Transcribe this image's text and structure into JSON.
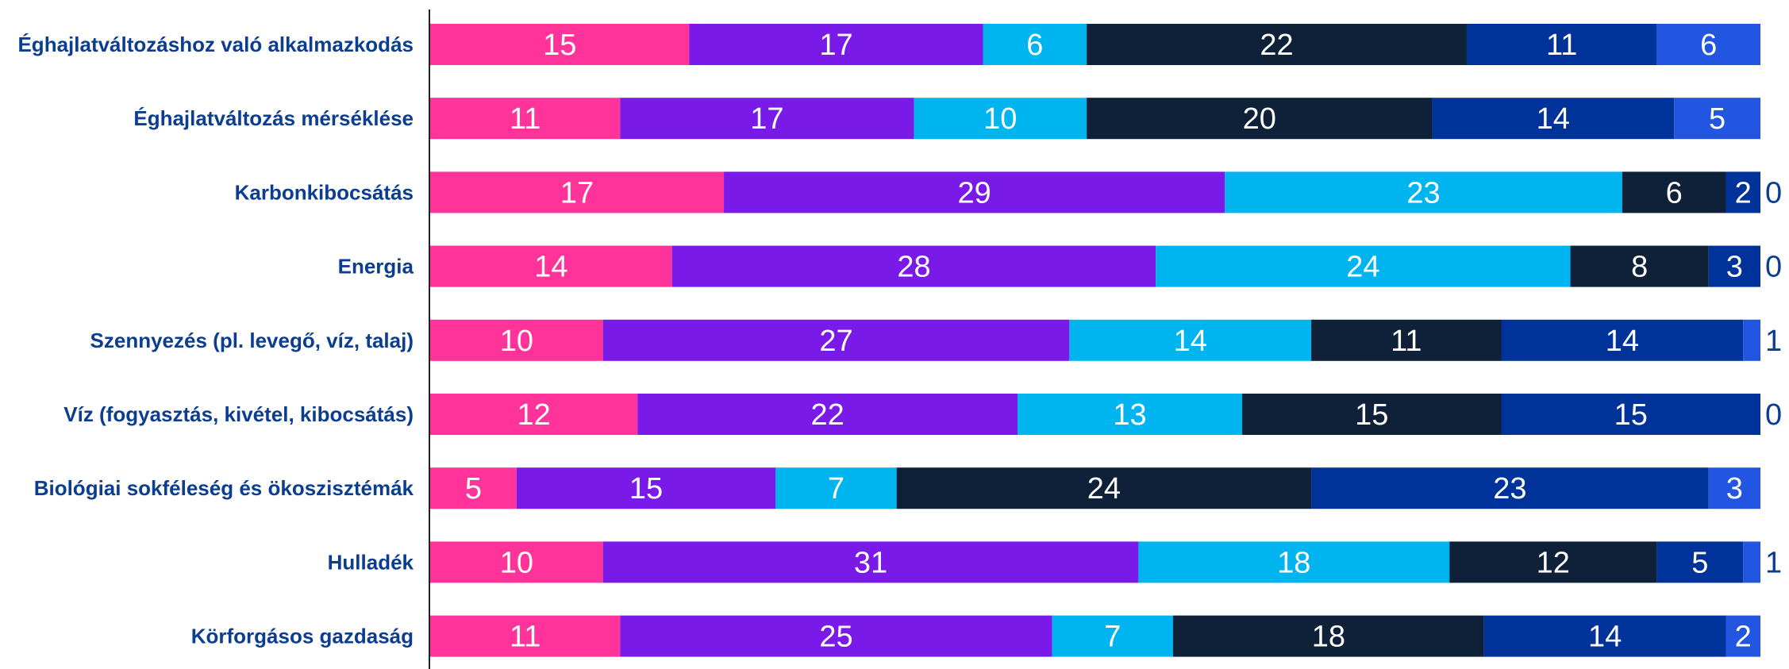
{
  "chart_data": {
    "type": "bar",
    "orientation": "horizontal",
    "stacked": true,
    "categories": [
      "Éghajlatváltozáshoz való alkalmazkodás",
      "Éghajlatváltozás mérséklése",
      "Karbonkibocsátás",
      "Energia",
      "Szennyezés (pl. levegő, víz, talaj)",
      "Víz (fogyasztás, kivétel, kibocsátás)",
      "Biológiai sokféleség és ökoszisztémák",
      "Hulladék",
      "Körforgásos gazdaság"
    ],
    "series": [
      {
        "color": "#ff3399",
        "values": [
          15,
          11,
          17,
          14,
          10,
          12,
          5,
          10,
          11
        ]
      },
      {
        "color": "#7a1ae8",
        "values": [
          17,
          17,
          29,
          28,
          27,
          22,
          15,
          31,
          25
        ]
      },
      {
        "color": "#00b5ef",
        "values": [
          6,
          10,
          23,
          24,
          14,
          13,
          7,
          18,
          7
        ]
      },
      {
        "color": "#0e2139",
        "values": [
          22,
          20,
          6,
          8,
          11,
          15,
          24,
          12,
          18
        ]
      },
      {
        "color": "#003399",
        "values": [
          11,
          14,
          2,
          3,
          14,
          15,
          23,
          5,
          14
        ]
      },
      {
        "color": "#2255e0",
        "values": [
          6,
          5,
          0,
          0,
          1,
          0,
          3,
          1,
          2
        ]
      }
    ],
    "title": "",
    "xlabel": "",
    "ylabel": "",
    "grid": false,
    "legend": "none"
  }
}
